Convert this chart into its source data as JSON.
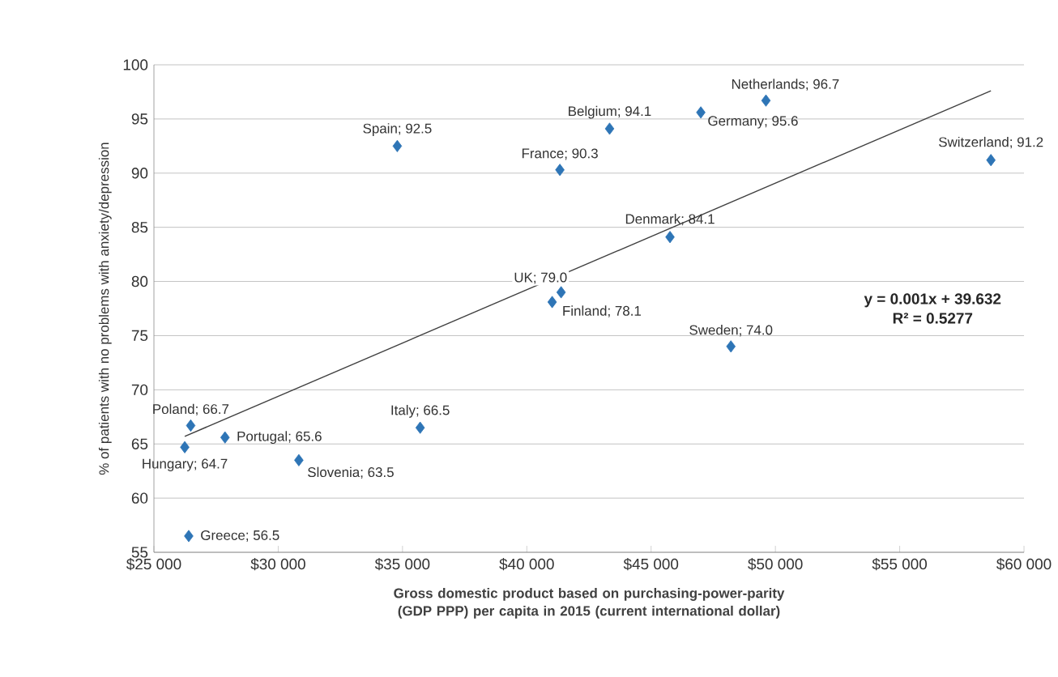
{
  "chart_data": {
    "type": "scatter",
    "xlabel": "Gross domestic product based on purchasing-power-parity (GDP PPP) per capita in 2015 (current international dollar)",
    "ylabel": "% of patients with no problems with anxiety/depression",
    "xlim": [
      25000,
      60000
    ],
    "xticks": [
      {
        "value": 25000,
        "label": "$25 000"
      },
      {
        "value": 30000,
        "label": "$30 000"
      },
      {
        "value": 35000,
        "label": "$35 000"
      },
      {
        "value": 40000,
        "label": "$40 000"
      },
      {
        "value": 45000,
        "label": "$45 000"
      },
      {
        "value": 50000,
        "label": "$50 000"
      },
      {
        "value": 55000,
        "label": "$55 000"
      },
      {
        "value": 60000,
        "label": "$60 000"
      }
    ],
    "ylim": [
      55,
      100
    ],
    "yticks": [
      55,
      60,
      65,
      70,
      75,
      80,
      85,
      90,
      95,
      100
    ],
    "grid": "y",
    "series": [
      {
        "marker": "diamond",
        "color": "#2e75b6",
        "x": [
          34790,
          43330,
          49620,
          47000,
          41330,
          45760,
          58670,
          41380,
          41020,
          48210,
          26480,
          35710,
          27860,
          26240,
          30830,
          26400
        ],
        "values": [
          92.5,
          94.1,
          96.7,
          95.6,
          90.3,
          84.1,
          91.2,
          79.0,
          78.1,
          74.0,
          66.7,
          66.5,
          65.6,
          64.7,
          63.5,
          56.5
        ],
        "value_labels": [
          "Spain; 92.5",
          "Belgium; 94.1",
          "Netherlands; 96.7",
          "Germany; 95.6",
          "France; 90.3",
          "Denmark; 84.1",
          "Switzerland; 91.2",
          "UK; 79.0",
          "Finland; 78.1",
          "Sweden; 74.0",
          "Poland; 66.7",
          "Italy; 66.5",
          "Portugal; 65.6",
          "Hungary; 64.7",
          "Slovenia; 63.5",
          "Greece; 56.5"
        ]
      },
      {
        "type": "line",
        "marker": "none",
        "color": "#404040",
        "x": [
          26240,
          58670
        ],
        "values": [
          65.7,
          97.6
        ]
      }
    ],
    "annotations": [
      "y = 0.001x + 39.632",
      "R² = 0.5277"
    ]
  }
}
